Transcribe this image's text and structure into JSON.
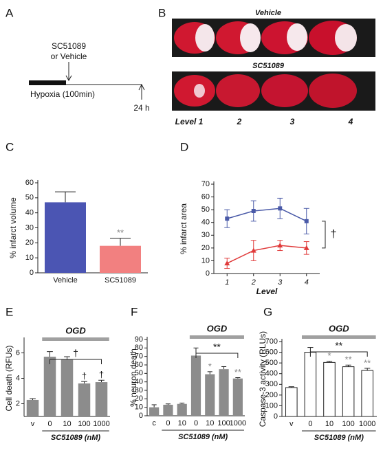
{
  "panel_labels": [
    "A",
    "B",
    "C",
    "D",
    "E",
    "F",
    "G"
  ],
  "timeline": {
    "drug_label": [
      "SC51089",
      "or Vehicle"
    ],
    "hypoxia_label": "Hypoxia (100min)",
    "end_label": "24 h"
  },
  "brain_images": {
    "rows": [
      "Vehicle",
      "SC51089"
    ],
    "levels": [
      "Level 1",
      "2",
      "3",
      "4"
    ]
  },
  "chart_data": [
    {
      "type": "bar",
      "ylabel": "% infarct volume",
      "categories": [
        "Vehicle",
        "SC51089"
      ],
      "values": [
        47,
        18
      ],
      "errors": [
        7,
        5
      ],
      "colors": [
        "#4b55b3",
        "#f28080"
      ],
      "annotations": [
        null,
        "**"
      ],
      "ylim": [
        0,
        60
      ],
      "yticks": [
        0,
        10,
        20,
        30,
        40,
        50,
        60
      ]
    },
    {
      "type": "line",
      "ylabel": "% infarct area",
      "xlabel": "Level",
      "categories": [
        "1",
        "2",
        "3",
        "4"
      ],
      "series": [
        {
          "color": "#4a5aa8",
          "values": [
            43,
            49,
            51,
            41
          ],
          "errors": [
            7,
            8,
            8,
            10
          ]
        },
        {
          "color": "#e03a3a",
          "values": [
            8,
            18,
            22,
            20
          ],
          "errors": [
            4,
            8,
            4,
            5
          ]
        }
      ],
      "annotation": "†",
      "ylim": [
        0,
        70
      ],
      "yticks": [
        0,
        10,
        20,
        30,
        40,
        50,
        60,
        70
      ]
    },
    {
      "type": "bar",
      "ylabel": "Cell death (RFUs)",
      "xlabel": "SC51089 (nM)",
      "group_label": "OGD",
      "bracket": "†",
      "categories": [
        "v",
        "0",
        "10",
        "100",
        "1000"
      ],
      "values": [
        2.3,
        5.7,
        5.5,
        3.6,
        3.7
      ],
      "errors": [
        0.1,
        0.4,
        0.2,
        0.15,
        0.15
      ],
      "color": "#8c8c8c",
      "annotations": [
        null,
        null,
        null,
        "†",
        "†"
      ],
      "ylim": [
        1,
        7
      ],
      "yticks": [
        2,
        4,
        6
      ]
    },
    {
      "type": "bar",
      "ylabel": "% neuron death",
      "xlabel": "SC51089 (nM)",
      "group_label": "OGD",
      "bracket": "**",
      "categories": [
        "c",
        "0",
        "10",
        "0",
        "10",
        "100",
        "1000"
      ],
      "values": [
        10,
        13,
        14,
        71,
        49,
        55,
        44
      ],
      "errors": [
        3,
        1,
        1,
        9,
        3,
        3,
        1
      ],
      "color": "#8c8c8c",
      "annotations": [
        null,
        null,
        null,
        null,
        "*",
        null,
        "**"
      ],
      "ylim": [
        0,
        90
      ],
      "yticks": [
        0,
        10,
        20,
        30,
        40,
        50,
        60,
        70,
        80,
        90
      ]
    },
    {
      "type": "bar",
      "ylabel": "Caspase-3 activity (RLUs)",
      "xlabel": "SC51089 (nM)",
      "group_label": "OGD",
      "bracket": "**",
      "categories": [
        "v",
        "0",
        "10",
        "100",
        "1000"
      ],
      "values": [
        270,
        600,
        505,
        465,
        430
      ],
      "errors": [
        8,
        45,
        10,
        15,
        20
      ],
      "color": "#ffffff",
      "annotations": [
        null,
        null,
        "*",
        "**",
        "**"
      ],
      "ylim": [
        0,
        700
      ],
      "yticks": [
        0,
        100,
        200,
        300,
        400,
        500,
        600,
        700
      ]
    }
  ]
}
